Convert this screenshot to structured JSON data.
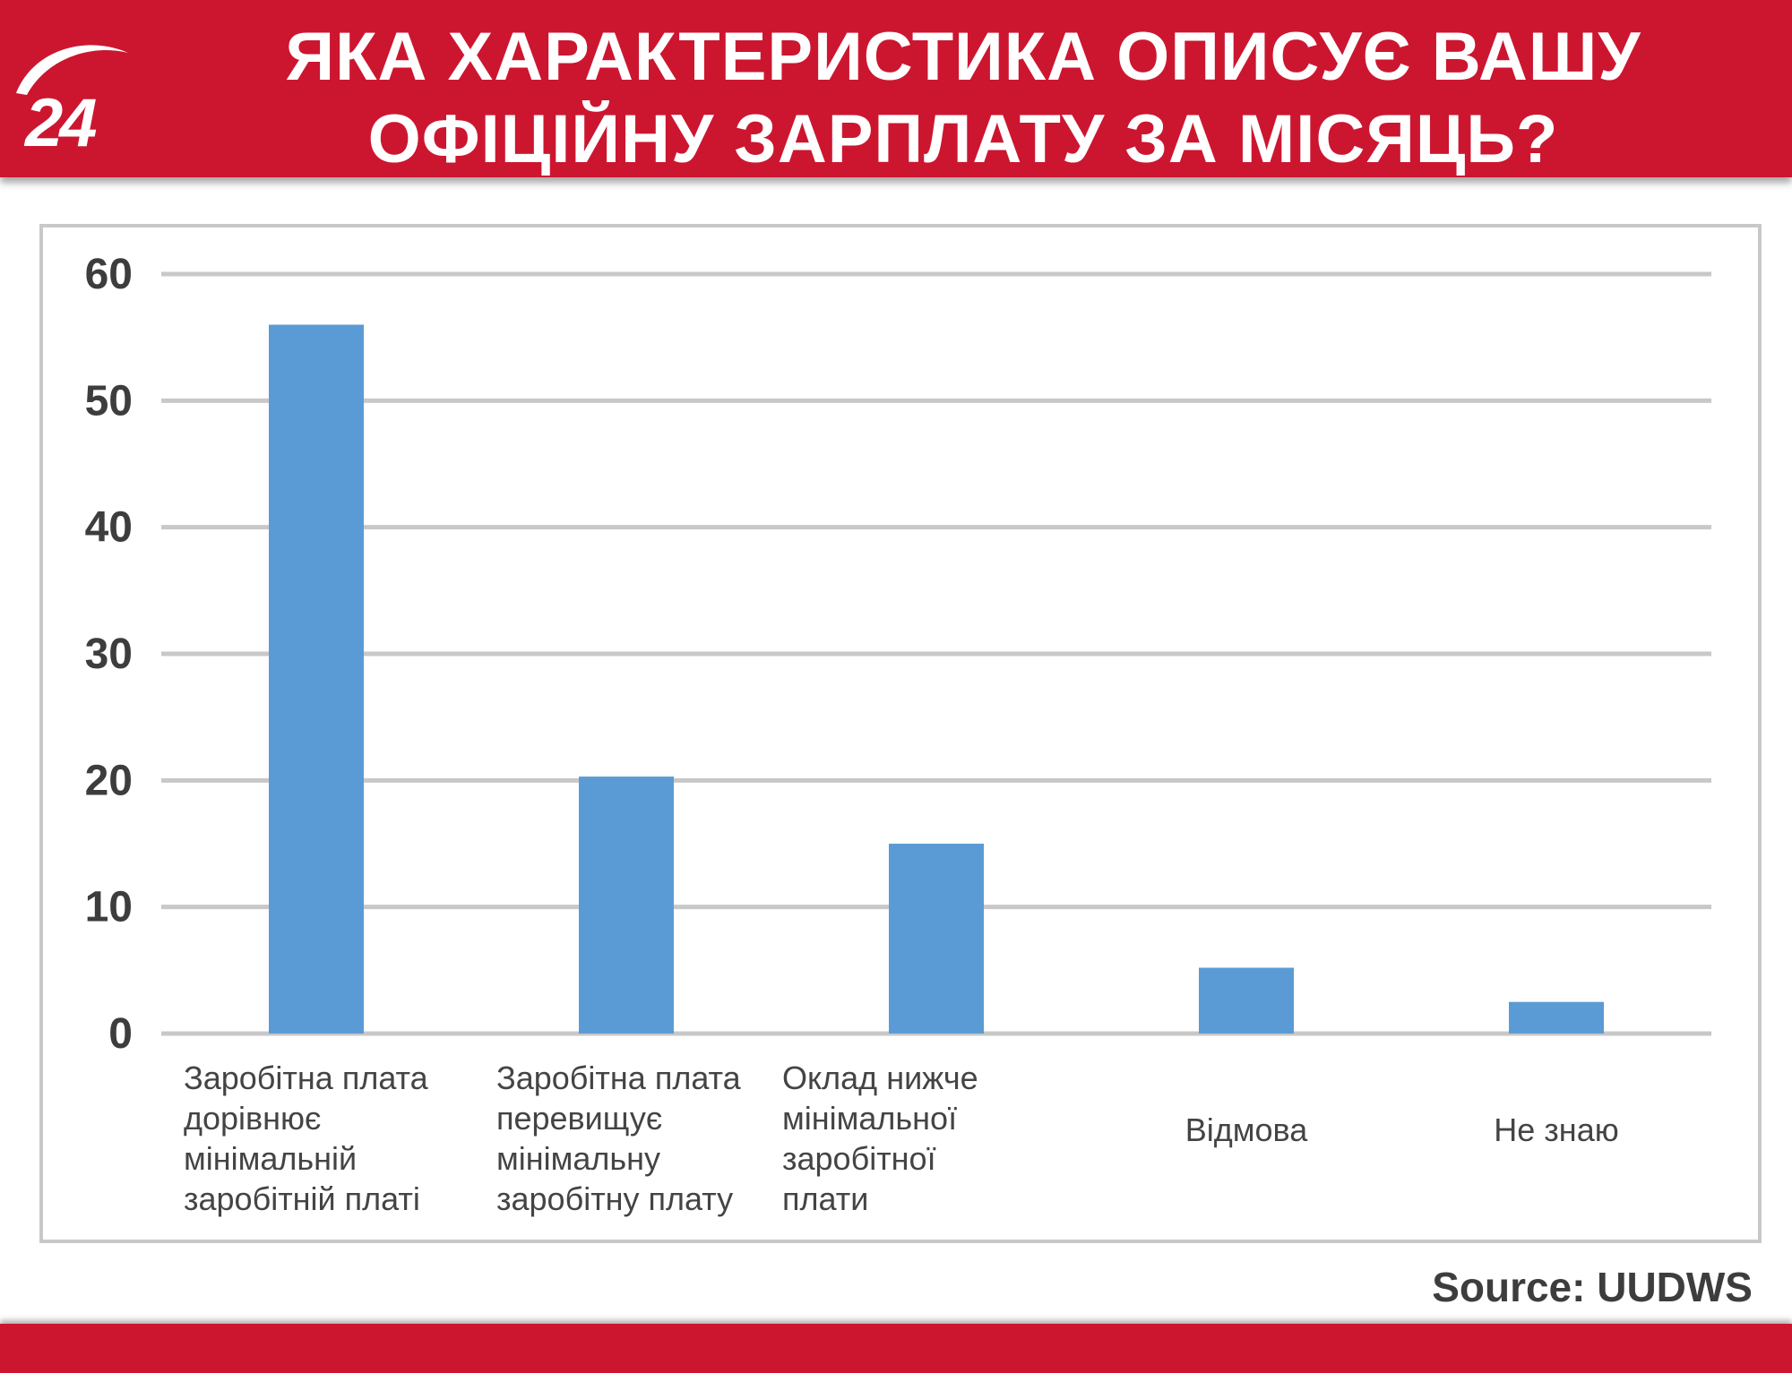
{
  "header": {
    "title": "ЯКА ХАРАКТЕРИСТИКА ОПИСУЄ ВАШУ ОФІЦІЙНУ ЗАРПЛАТУ ЗА МІСЯЦЬ?",
    "logo_text": "24"
  },
  "source": "Source: UUDWS",
  "colors": {
    "brand_red": "#cc1630",
    "bar": "#5b9bd5",
    "grid": "#c8c8c8",
    "axis_text": "#3d3d3d",
    "category_text": "#444444"
  },
  "chart_data": {
    "type": "bar",
    "title": "ЯКА ХАРАКТЕРИСТИКА ОПИСУЄ ВАШУ ОФІЦІЙНУ ЗАРПЛАТУ ЗА МІСЯЦЬ?",
    "categories": [
      [
        "Заробітна плата",
        "дорівнює",
        "мінімальній",
        "заробітній платі"
      ],
      [
        "Заробітна плата",
        "перевищує",
        "мінімальну",
        "заробітну плату"
      ],
      [
        "Оклад нижче",
        "мінімальної",
        "заробітної",
        "плати"
      ],
      [
        "Відмова"
      ],
      [
        "Не знаю"
      ]
    ],
    "values": [
      56,
      20.3,
      15,
      5.2,
      2.5
    ],
    "ylim": [
      0,
      60
    ],
    "yticks": [
      0,
      10,
      20,
      30,
      40,
      50,
      60
    ],
    "grid": true,
    "legend": "none",
    "xlabel": "",
    "ylabel": ""
  }
}
